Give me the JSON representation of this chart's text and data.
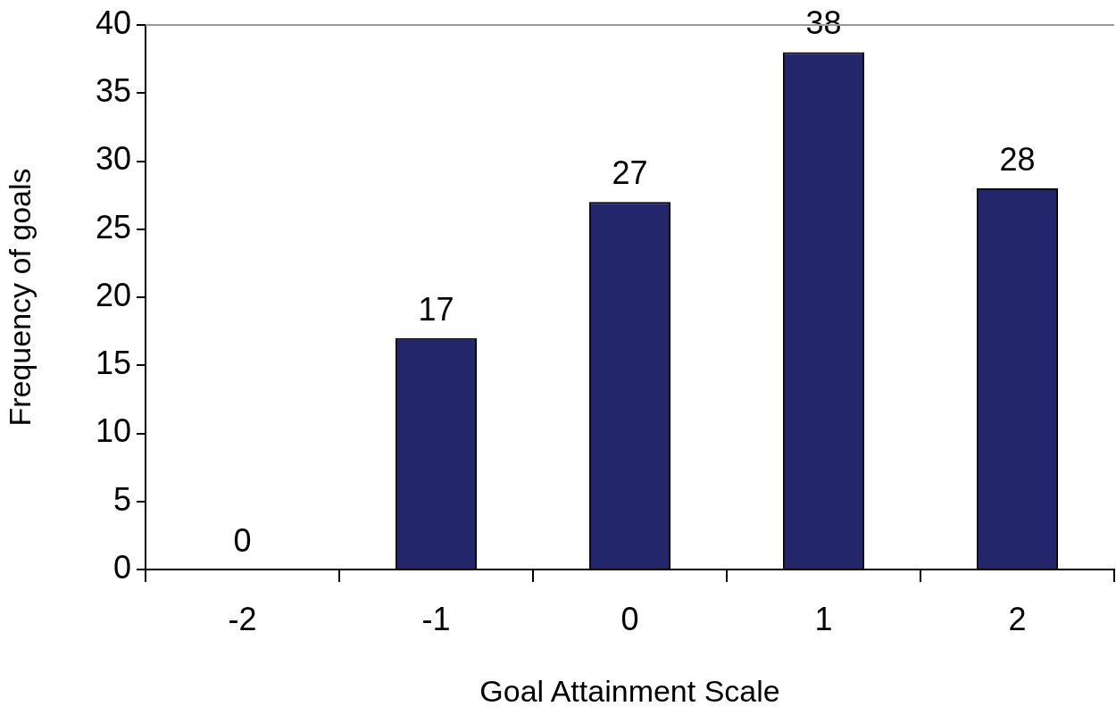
{
  "chart_data": {
    "type": "bar",
    "xlabel": "Goal Attainment Scale",
    "ylabel": "Frequency of goals",
    "categories": [
      "-2",
      "-1",
      "0",
      "1",
      "2"
    ],
    "values": [
      0,
      17,
      27,
      38,
      28
    ],
    "color": "#23266b",
    "ylim": [
      0,
      40
    ],
    "yticks": [
      0,
      5,
      10,
      15,
      20,
      25,
      30,
      35,
      40
    ],
    "grid": false,
    "legend": false,
    "data_labels": true
  }
}
